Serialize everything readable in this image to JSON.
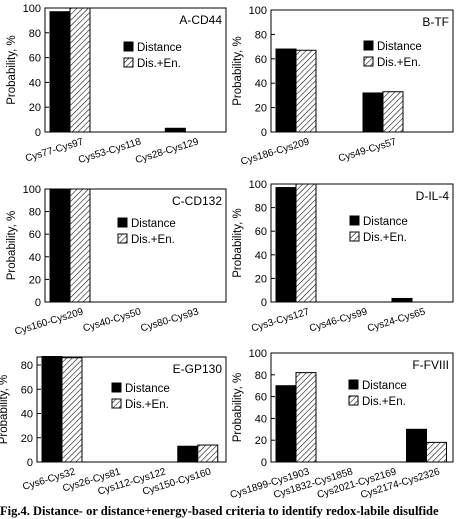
{
  "figure_caption": "Fig.4. Distance- or distance+energy-based criteria to identify redox-labile disulfide",
  "colors": {
    "distance_fill": "#000000",
    "dis_en_pattern": "hatched",
    "axis": "#000000",
    "background": "#ffffff"
  },
  "chart_data": [
    {
      "type": "bar",
      "title": "A-CD44",
      "ylabel": "Probability, %",
      "ylim": [
        0,
        100
      ],
      "yticks": [
        0,
        20,
        40,
        60,
        80,
        100
      ],
      "categories": [
        "Cys77-Cys97",
        "Cys53-Cys118",
        "Cys28-Cys129"
      ],
      "series": [
        {
          "name": "Distance",
          "values": [
            97,
            0,
            3
          ]
        },
        {
          "name": "Dis.+En.",
          "values": [
            100,
            0,
            0
          ]
        }
      ],
      "legend": "right",
      "grid": false
    },
    {
      "type": "bar",
      "title": "B-TF",
      "ylabel": "Probability, %",
      "ylim": [
        0,
        100
      ],
      "yticks": [
        0,
        20,
        40,
        60,
        80,
        100
      ],
      "categories": [
        "Cys186-Cys209",
        "Cys49-Cys57"
      ],
      "series": [
        {
          "name": "Distance",
          "values": [
            68,
            32
          ]
        },
        {
          "name": "Dis.+En.",
          "values": [
            67,
            33
          ]
        }
      ],
      "legend": "right",
      "grid": false
    },
    {
      "type": "bar",
      "title": "C-CD132",
      "ylabel": "Probability, %",
      "ylim": [
        0,
        100
      ],
      "yticks": [
        0,
        20,
        40,
        60,
        80,
        100
      ],
      "categories": [
        "Cys160-Cys209",
        "Cys40-Cys50",
        "Cys80-Cys93"
      ],
      "series": [
        {
          "name": "Distance",
          "values": [
            100,
            0,
            0
          ]
        },
        {
          "name": "Dis.+En.",
          "values": [
            100,
            0,
            0
          ]
        }
      ],
      "legend": "right",
      "grid": false
    },
    {
      "type": "bar",
      "title": "D-IL-4",
      "ylabel": "Probability, %",
      "ylim": [
        0,
        100
      ],
      "yticks": [
        0,
        20,
        40,
        60,
        80,
        100
      ],
      "categories": [
        "Cys3-Cys127",
        "Cys46-Cys99",
        "Cys24-Cys65"
      ],
      "series": [
        {
          "name": "Distance",
          "values": [
            97,
            0,
            3
          ]
        },
        {
          "name": "Dis.+En.",
          "values": [
            100,
            0,
            0
          ]
        }
      ],
      "legend": "right",
      "grid": false
    },
    {
      "type": "bar",
      "title": "E-GP130",
      "ylabel": "Probability, %",
      "ylim": [
        0,
        100
      ],
      "yticks": [
        0,
        20,
        40,
        60,
        80
      ],
      "categories": [
        "Cys6-Cys32",
        "Cys26-Cys81",
        "Cys112-Cys122",
        "Cys150-Cys160"
      ],
      "series": [
        {
          "name": "Distance",
          "values": [
            87,
            0,
            0,
            13
          ]
        },
        {
          "name": "Dis.+En.",
          "values": [
            86,
            0,
            0,
            14
          ]
        }
      ],
      "legend": "right",
      "grid": false
    },
    {
      "type": "bar",
      "title": "F-FVIII",
      "ylabel": "Probability, %",
      "ylim": [
        0,
        100
      ],
      "yticks": [
        0,
        20,
        40,
        60,
        80,
        100
      ],
      "categories": [
        "Cys1899-Cys1903",
        "Cys1832-Cys1858",
        "Cys2021-Cys2169",
        "Cys2174-Cys2326"
      ],
      "series": [
        {
          "name": "Distance",
          "values": [
            70,
            0,
            0,
            30
          ]
        },
        {
          "name": "Dis.+En.",
          "values": [
            82,
            0,
            0,
            18
          ]
        }
      ],
      "legend": "right",
      "grid": false
    }
  ]
}
